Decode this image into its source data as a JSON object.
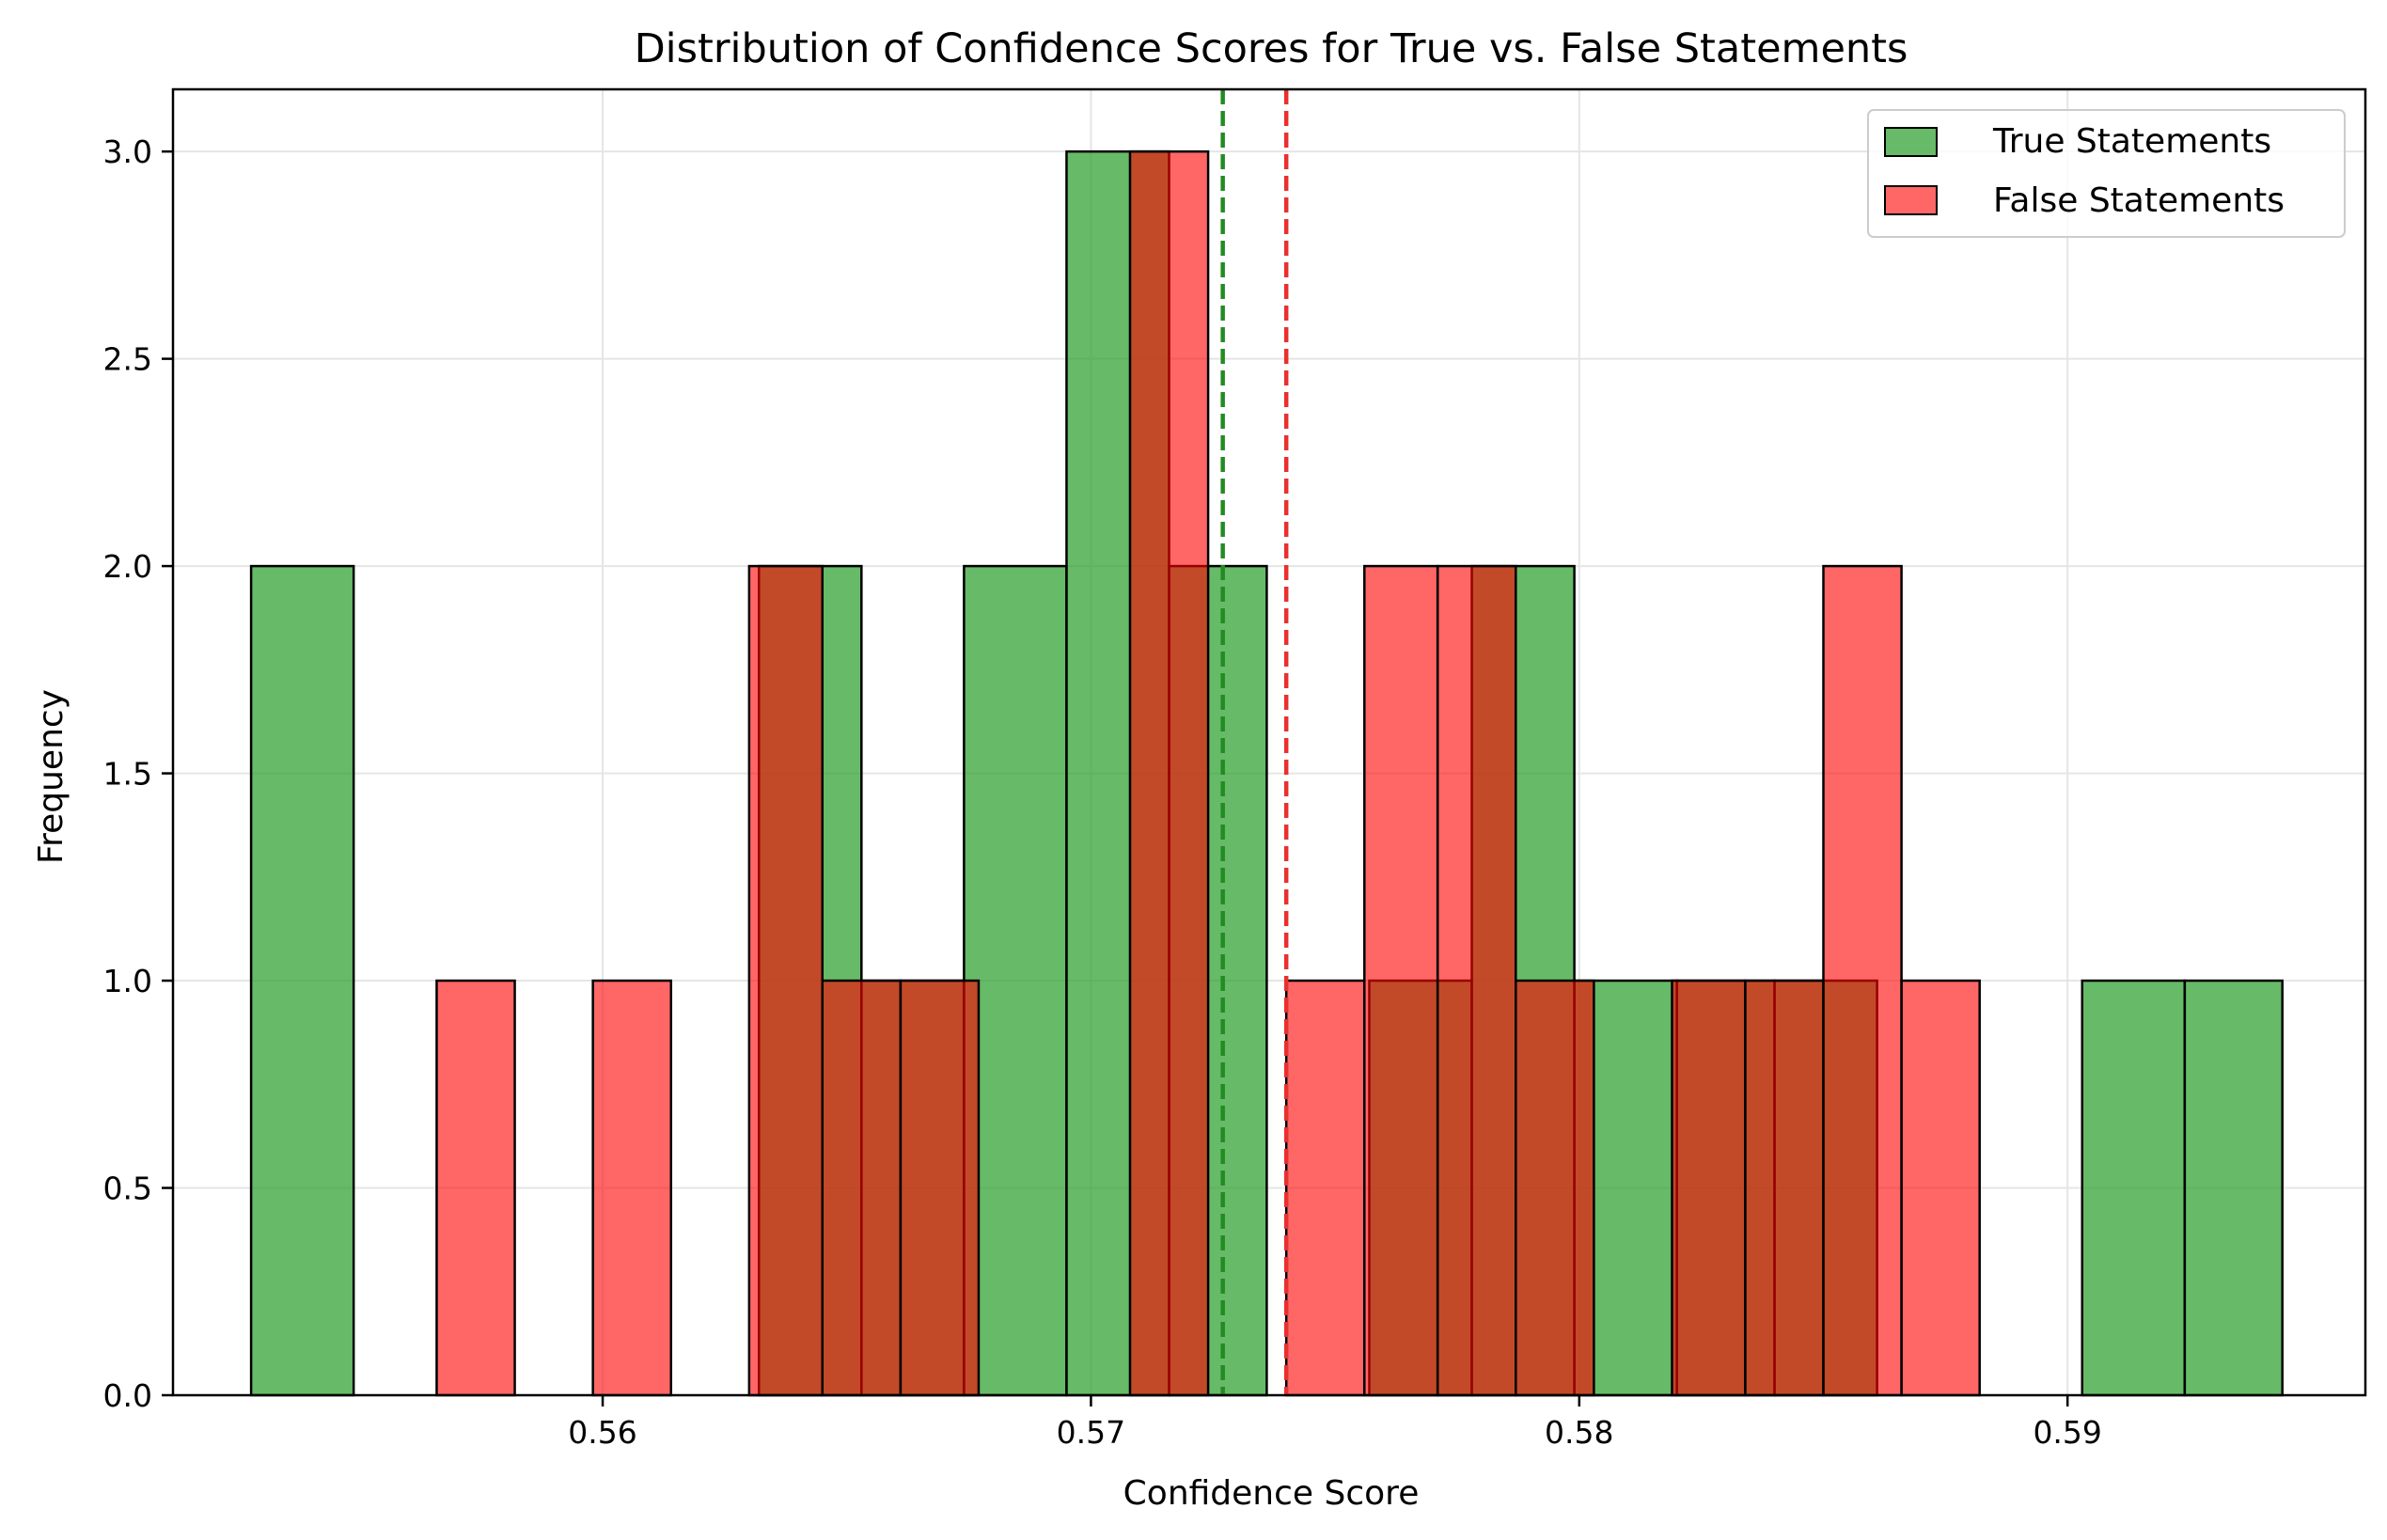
{
  "chart_data": {
    "type": "bar",
    "title": "Distribution of Confidence Scores for True vs. False Statements",
    "xlabel": "Confidence Score",
    "ylabel": "Frequency",
    "xlim": [
      0.5512,
      0.5961
    ],
    "ylim": [
      0,
      3.15
    ],
    "xticks": [
      "0.56",
      "0.57",
      "0.58",
      "0.59"
    ],
    "xtick_values": [
      0.56,
      0.57,
      0.58,
      0.59
    ],
    "yticks": [
      "0.0",
      "0.5",
      "1.0",
      "1.5",
      "2.0",
      "2.5",
      "3.0"
    ],
    "ytick_values": [
      0,
      0.5,
      1.0,
      1.5,
      2.0,
      2.5,
      3.0
    ],
    "grid": true,
    "legend_position": "top-right",
    "series": [
      {
        "name": "True Statements",
        "color": "#2ca02c",
        "bins": [
          {
            "x0": 0.5528,
            "x1": 0.5549,
            "value": 2
          },
          {
            "x0": 0.5549,
            "x1": 0.557,
            "value": 0
          },
          {
            "x0": 0.557,
            "x1": 0.5591,
            "value": 0
          },
          {
            "x0": 0.5591,
            "x1": 0.5612,
            "value": 0
          },
          {
            "x0": 0.5612,
            "x1": 0.5632,
            "value": 0
          },
          {
            "x0": 0.5632,
            "x1": 0.5653,
            "value": 2
          },
          {
            "x0": 0.5653,
            "x1": 0.5674,
            "value": 1
          },
          {
            "x0": 0.5674,
            "x1": 0.5695,
            "value": 2
          },
          {
            "x0": 0.5695,
            "x1": 0.5716,
            "value": 3
          },
          {
            "x0": 0.5716,
            "x1": 0.5736,
            "value": 2
          },
          {
            "x0": 0.5736,
            "x1": 0.5757,
            "value": 0
          },
          {
            "x0": 0.5757,
            "x1": 0.5778,
            "value": 1
          },
          {
            "x0": 0.5778,
            "x1": 0.5799,
            "value": 2
          },
          {
            "x0": 0.5799,
            "x1": 0.582,
            "value": 1
          },
          {
            "x0": 0.582,
            "x1": 0.584,
            "value": 1
          },
          {
            "x0": 0.584,
            "x1": 0.5861,
            "value": 1
          },
          {
            "x0": 0.5861,
            "x1": 0.5882,
            "value": 0
          },
          {
            "x0": 0.5882,
            "x1": 0.5903,
            "value": 0
          },
          {
            "x0": 0.5903,
            "x1": 0.5924,
            "value": 1
          },
          {
            "x0": 0.5924,
            "x1": 0.5944,
            "value": 1
          }
        ],
        "mean": 0.5727,
        "mean_color": "#228b22"
      },
      {
        "name": "False Statements",
        "color": "#ff0000",
        "bins": [
          {
            "x0": 0.5566,
            "x1": 0.5582,
            "value": 1
          },
          {
            "x0": 0.5582,
            "x1": 0.5598,
            "value": 0
          },
          {
            "x0": 0.5598,
            "x1": 0.5614,
            "value": 1
          },
          {
            "x0": 0.5614,
            "x1": 0.563,
            "value": 0
          },
          {
            "x0": 0.563,
            "x1": 0.5645,
            "value": 2
          },
          {
            "x0": 0.5645,
            "x1": 0.5661,
            "value": 1
          },
          {
            "x0": 0.5661,
            "x1": 0.5677,
            "value": 1
          },
          {
            "x0": 0.5677,
            "x1": 0.5693,
            "value": 0
          },
          {
            "x0": 0.5693,
            "x1": 0.5708,
            "value": 0
          },
          {
            "x0": 0.5708,
            "x1": 0.5724,
            "value": 3
          },
          {
            "x0": 0.5724,
            "x1": 0.574,
            "value": 0
          },
          {
            "x0": 0.574,
            "x1": 0.5756,
            "value": 1
          },
          {
            "x0": 0.5756,
            "x1": 0.5771,
            "value": 2
          },
          {
            "x0": 0.5771,
            "x1": 0.5787,
            "value": 2
          },
          {
            "x0": 0.5787,
            "x1": 0.5803,
            "value": 1
          },
          {
            "x0": 0.5803,
            "x1": 0.5819,
            "value": 0
          },
          {
            "x0": 0.5819,
            "x1": 0.5834,
            "value": 1
          },
          {
            "x0": 0.5834,
            "x1": 0.585,
            "value": 1
          },
          {
            "x0": 0.585,
            "x1": 0.5866,
            "value": 2
          },
          {
            "x0": 0.5866,
            "x1": 0.5882,
            "value": 1
          }
        ],
        "mean": 0.574,
        "mean_color": "#e8302e"
      }
    ]
  }
}
